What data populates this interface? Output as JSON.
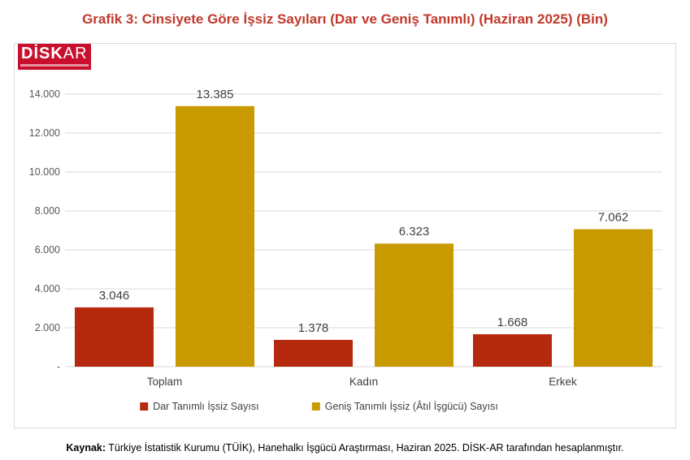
{
  "title": "Grafik 3: Cinsiyete Göre İşsiz Sayıları (Dar ve Geniş Tanımlı) (Haziran 2025) (Bin)",
  "logo": {
    "main": "DİSK",
    "suffix": "AR"
  },
  "source": {
    "label": "Kaynak:",
    "text": " Türkiye İstatistik Kurumu (TÜİK), Hanehalkı İşgücü Araştırması, Haziran 2025. DİSK-AR tarafından hesaplanmıştır."
  },
  "chart_data": {
    "type": "bar",
    "categories": [
      "Toplam",
      "Kadın",
      "Erkek"
    ],
    "series": [
      {
        "name": "Dar Tanımlı İşsiz Sayısı",
        "color": "#b52a0e",
        "values": [
          3046,
          1378,
          1668
        ],
        "labels": [
          "3.046",
          "1.378",
          "1.668"
        ]
      },
      {
        "name": "Geniş Tanımlı İşsiz (Âtıl İşgücü) Sayısı",
        "color": "#c99a00",
        "values": [
          13385,
          6323,
          7062
        ],
        "labels": [
          "13.385",
          "6.323",
          "7.062"
        ]
      }
    ],
    "yticks": [
      0,
      2000,
      4000,
      6000,
      8000,
      10000,
      12000,
      14000
    ],
    "ytick_labels": [
      "-",
      "2.000",
      "4.000",
      "6.000",
      "8.000",
      "10.000",
      "12.000",
      "14.000"
    ],
    "ylim": [
      0,
      14000
    ],
    "grid": true,
    "legend": "bottom"
  }
}
